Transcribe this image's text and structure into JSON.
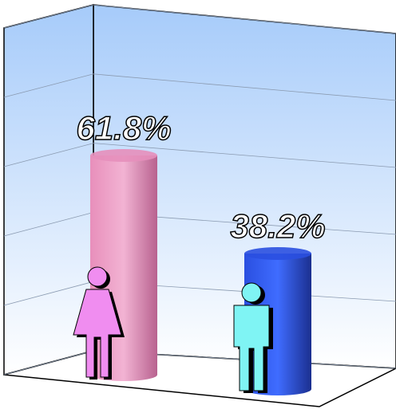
{
  "chart_data": {
    "type": "bar3d",
    "categories": [
      null,
      null
    ],
    "values": [
      61.8,
      38.2
    ],
    "value_labels": [
      "61.8%",
      "38.2%"
    ],
    "colors": [
      "#e58fbb",
      "#2a4fe0"
    ],
    "ylim": [
      0,
      100
    ],
    "yticks": [
      0,
      20,
      40,
      60,
      80,
      100
    ],
    "grid": true
  }
}
